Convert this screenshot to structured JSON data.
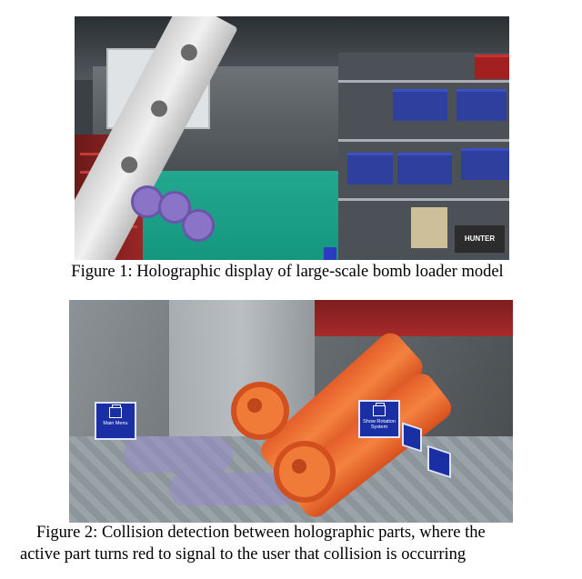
{
  "figure1": {
    "caption": "Figure 1: Holographic display of large-scale bomb loader model",
    "signage_text": "HUNTER"
  },
  "figure2": {
    "caption_line1": "Figure 2: Collision detection between holographic parts, where the",
    "caption_line2": "active part turns red to signal to the user that collision is occurring",
    "holo_buttons": [
      {
        "label": "Main Menu"
      },
      {
        "label": "Show Rotation System"
      }
    ]
  },
  "colors": {
    "floor_green": "#1aa088",
    "collision_orange": "#f07a38",
    "holo_panel_blue": "#1b2fa4",
    "ghost_purple": "#8a74c8"
  }
}
